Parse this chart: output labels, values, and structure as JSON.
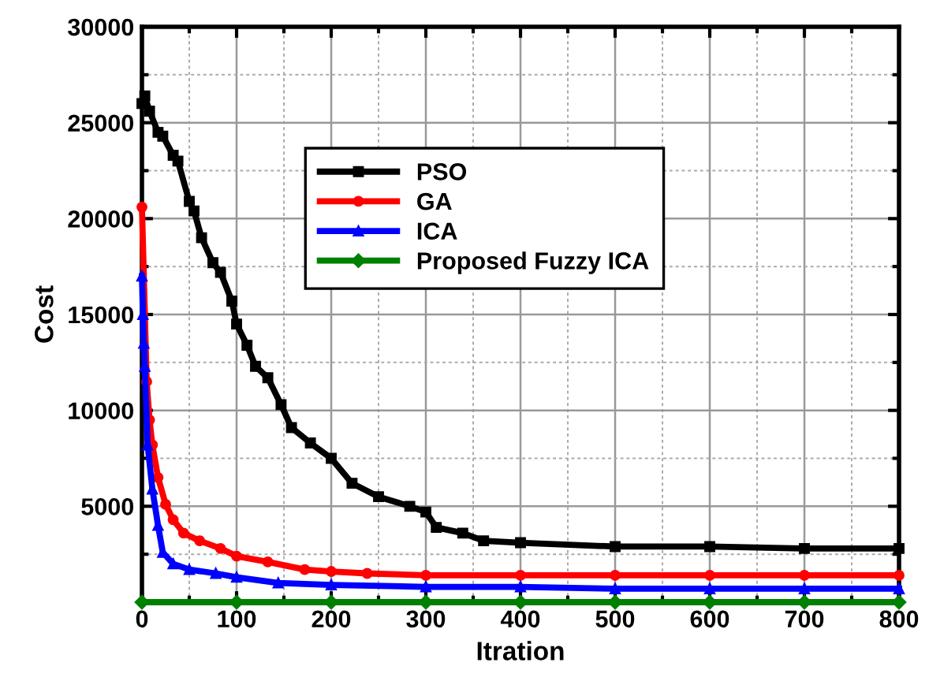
{
  "chart_data": {
    "type": "line",
    "xlabel": "Itration",
    "ylabel": "Cost",
    "xlim": [
      0,
      800
    ],
    "ylim": [
      0,
      30000
    ],
    "xticks": [
      0,
      {
        "value": 50,
        "label": null
      },
      100,
      {
        "value": 150,
        "label": null
      },
      200,
      {
        "value": 250,
        "label": null
      },
      300,
      {
        "value": 350,
        "label": null
      },
      400,
      {
        "value": 450,
        "label": null
      },
      500,
      {
        "value": 550,
        "label": null
      },
      600,
      {
        "value": 650,
        "label": null
      },
      700,
      {
        "value": 750,
        "label": null
      },
      800
    ],
    "yticks": [
      {
        "value": 0,
        "label": null
      },
      {
        "value": 2500,
        "label": null
      },
      5000,
      {
        "value": 7500,
        "label": null
      },
      10000,
      {
        "value": 12500,
        "label": null
      },
      15000,
      {
        "value": 17500,
        "label": null
      },
      20000,
      {
        "value": 22500,
        "label": null
      },
      25000,
      {
        "value": 27500,
        "label": null
      },
      30000
    ],
    "grid": true,
    "legend": "top",
    "line_style": "solid",
    "series": [
      {
        "name": "PSO",
        "color": "#000000",
        "marker": "square",
        "x": [
          0,
          3,
          8,
          17,
          22,
          33,
          38,
          50,
          55,
          63,
          75,
          83,
          95,
          100,
          111,
          120,
          133,
          147,
          158,
          178,
          200,
          222,
          250,
          283,
          300,
          311,
          339,
          361,
          400,
          500,
          600,
          700,
          800
        ],
        "values": [
          26000,
          26400,
          25600,
          24500,
          24300,
          23300,
          23000,
          20900,
          20400,
          19000,
          17700,
          17200,
          15700,
          14500,
          13400,
          12300,
          11700,
          10300,
          9100,
          8300,
          7500,
          6200,
          5500,
          5000,
          4700,
          3900,
          3600,
          3200,
          3100,
          2900,
          2900,
          2800,
          2800
        ]
      },
      {
        "name": "GA",
        "color": "#ff0000",
        "marker": "circle",
        "x": [
          0,
          5,
          8,
          11,
          17,
          25,
          33,
          44,
          61,
          83,
          100,
          133,
          172,
          200,
          238,
          300,
          400,
          500,
          600,
          700,
          800
        ],
        "values": [
          20600,
          11500,
          9500,
          8200,
          6500,
          5100,
          4300,
          3600,
          3200,
          2800,
          2400,
          2100,
          1700,
          1600,
          1500,
          1400,
          1400,
          1400,
          1400,
          1400,
          1400
        ]
      },
      {
        "name": "ICA",
        "color": "#0000ff",
        "marker": "triangle",
        "x": [
          0,
          1,
          2,
          3,
          6,
          11,
          17,
          22,
          33,
          50,
          78,
          100,
          144,
          200,
          300,
          400,
          500,
          600,
          700,
          800
        ],
        "values": [
          17000,
          15000,
          13500,
          12300,
          8200,
          5900,
          4000,
          2600,
          2000,
          1700,
          1500,
          1300,
          1000,
          900,
          800,
          800,
          700,
          700,
          700,
          700
        ]
      },
      {
        "name": "Proposed Fuzzy ICA",
        "color": "#008000",
        "marker": "diamond",
        "x": [
          0,
          100,
          200,
          300,
          400,
          500,
          600,
          700,
          800
        ],
        "values": [
          0,
          0,
          0,
          0,
          0,
          0,
          0,
          0,
          0
        ]
      }
    ]
  }
}
